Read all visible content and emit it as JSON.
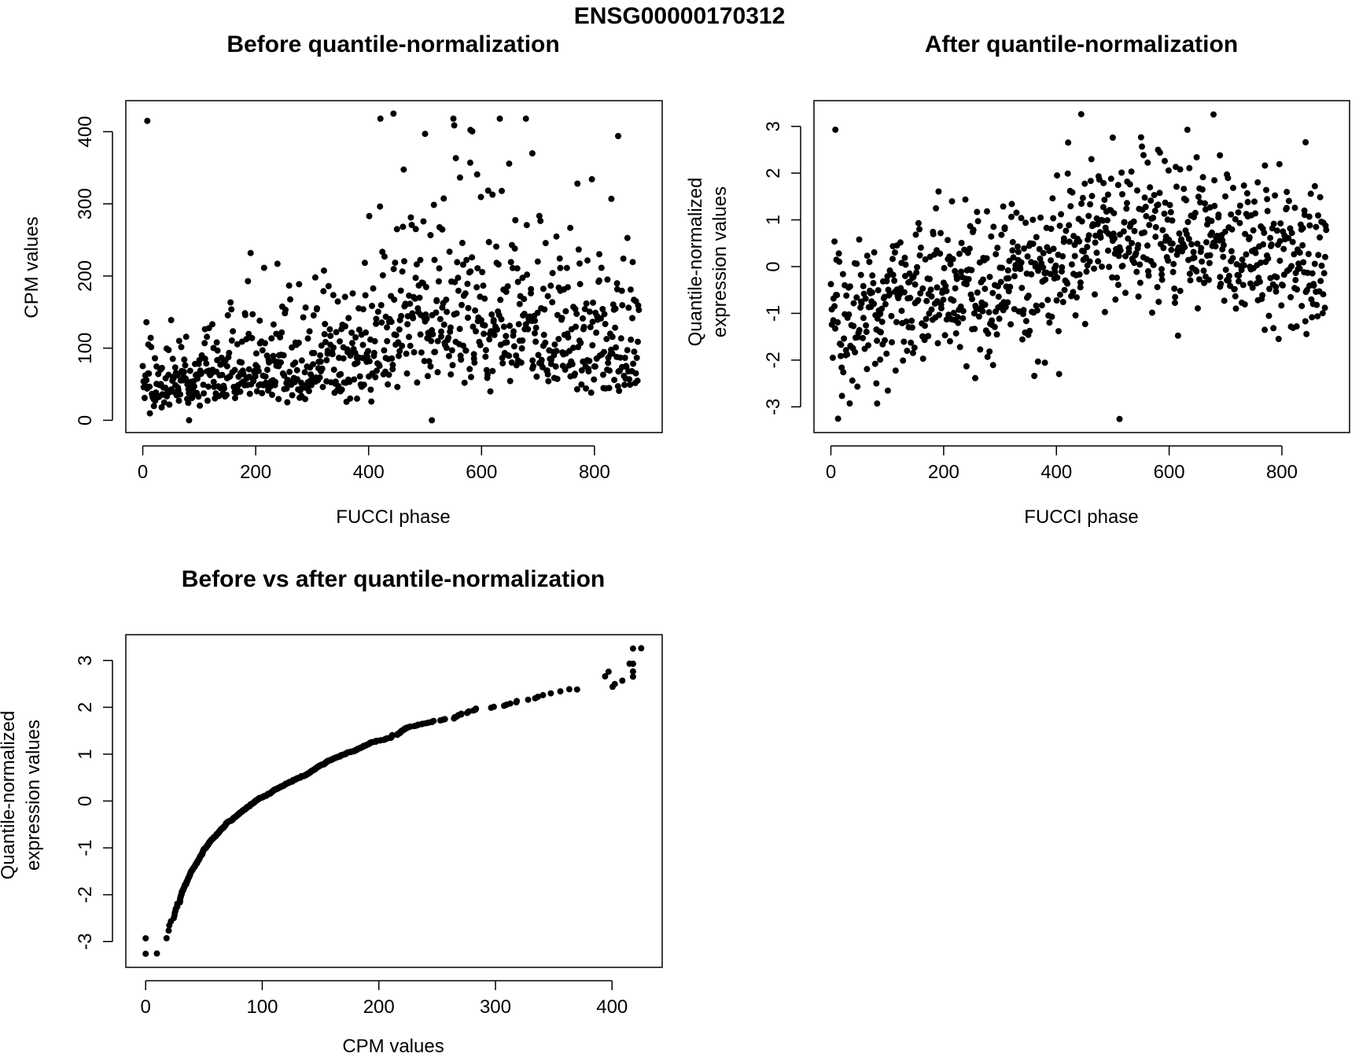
{
  "figure": {
    "title": "ENSG00000170312"
  },
  "chart_data": [
    {
      "type": "scatter",
      "title": "Before quantile-normalization",
      "xlabel": "FUCCI phase",
      "ylabel": "CPM values",
      "xlim": [
        -30,
        920
      ],
      "ylim": [
        -17,
        443
      ],
      "xticks": [
        0,
        200,
        400,
        600,
        800
      ],
      "yticks": [
        0,
        100,
        200,
        300,
        400
      ],
      "grid": false,
      "legend": "none",
      "point_color": "#000000",
      "n_points": 880,
      "source": "cpm",
      "highlight_points": [
        {
          "x": 8,
          "y": 415
        },
        {
          "x": 444,
          "y": 425
        },
        {
          "x": 500,
          "y": 397
        },
        {
          "x": 580,
          "y": 357
        },
        {
          "x": 690,
          "y": 370
        },
        {
          "x": 830,
          "y": 307
        },
        {
          "x": 842,
          "y": 394
        },
        {
          "x": 512,
          "y": 0
        },
        {
          "x": 82,
          "y": 0
        }
      ]
    },
    {
      "type": "scatter",
      "title": "After quantile-normalization",
      "xlabel": "FUCCI phase",
      "ylabel": "Quantile-normalized\nexpression values",
      "xlim": [
        -30,
        920
      ],
      "ylim": [
        -3.55,
        3.55
      ],
      "xticks": [
        0,
        200,
        400,
        600,
        800
      ],
      "yticks": [
        -3,
        -2,
        -1,
        0,
        1,
        2,
        3
      ],
      "grid": false,
      "legend": "none",
      "point_color": "#000000",
      "n_points": 880,
      "source": "qn",
      "highlight_points": [
        {
          "x": 8,
          "y": 2.93
        },
        {
          "x": 444,
          "y": 3.26
        },
        {
          "x": 500,
          "y": 2.76
        },
        {
          "x": 690,
          "y": 2.38
        },
        {
          "x": 842,
          "y": 2.66
        },
        {
          "x": 512,
          "y": -3.26
        },
        {
          "x": 82,
          "y": -2.93
        }
      ]
    },
    {
      "type": "scatter",
      "title": "Before vs after quantile-normalization",
      "xlabel": "CPM values",
      "ylabel": "Quantile-normalized\nexpression values",
      "xlim": [
        -17,
        443
      ],
      "ylim": [
        -3.55,
        3.55
      ],
      "xticks": [
        0,
        100,
        200,
        300,
        400
      ],
      "yticks": [
        -3,
        -2,
        -1,
        0,
        1,
        2,
        3
      ],
      "grid": false,
      "legend": "none",
      "point_color": "#000000",
      "n_points": 880,
      "source": "cpm_vs_qn",
      "highlight_points": [
        {
          "x": 0,
          "y": -3.26
        },
        {
          "x": 0,
          "y": -2.93
        },
        {
          "x": 370,
          "y": 2.38
        },
        {
          "x": 394,
          "y": 2.66
        },
        {
          "x": 397,
          "y": 2.76
        },
        {
          "x": 415,
          "y": 2.93
        },
        {
          "x": 425,
          "y": 3.26
        }
      ]
    }
  ]
}
